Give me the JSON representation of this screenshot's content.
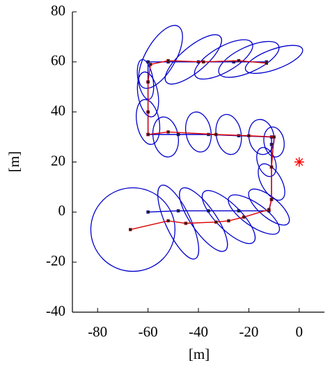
{
  "chart_data": {
    "type": "line",
    "xlabel": "[m]",
    "ylabel": "[m]",
    "xlim": [
      -90,
      10
    ],
    "ylim": [
      -40,
      80
    ],
    "xticks": [
      -80,
      -60,
      -40,
      -20,
      0
    ],
    "yticks": [
      -40,
      -20,
      0,
      20,
      40,
      60,
      80
    ],
    "series": [
      {
        "color": "#0000cc",
        "marker": "square",
        "x": [
          -60,
          -48,
          -36,
          -24,
          -12,
          -11,
          -11,
          -11,
          -11,
          -24,
          -36,
          -48,
          -60,
          -60,
          -60,
          -60,
          -52,
          -40,
          -26,
          -13
        ],
        "y": [
          0,
          0.5,
          0.5,
          0.5,
          0.5,
          5,
          18,
          27,
          30,
          30.5,
          31,
          31,
          31,
          40,
          52,
          60,
          60,
          60,
          60,
          60
        ]
      },
      {
        "color": "#dd0000",
        "marker": "square",
        "x": [
          -67,
          -52,
          -45,
          -33,
          -28,
          -22,
          -12,
          -11,
          -11,
          -10,
          -20,
          -33,
          -52,
          -60,
          -60,
          -60,
          -59,
          -52,
          -38,
          -24,
          -13
        ],
        "y": [
          -7,
          -3.5,
          -4.5,
          -4,
          -3.5,
          -2,
          1,
          5,
          18,
          30,
          30.5,
          31,
          32,
          31,
          40,
          52,
          59,
          60.5,
          60,
          60.5,
          59.5
        ]
      }
    ],
    "ellipse_color": "#0000cc",
    "ellipses": [
      {
        "cx": -66,
        "cy": -7,
        "rx": 16.7,
        "ry": 16.7,
        "angle": 0
      },
      {
        "cx": -48,
        "cy": -4,
        "rx": 16,
        "ry": 5,
        "angle": -65
      },
      {
        "cx": -38,
        "cy": -3,
        "rx": 15,
        "ry": 5,
        "angle": -55
      },
      {
        "cx": -28,
        "cy": -2,
        "rx": 14,
        "ry": 5,
        "angle": -45
      },
      {
        "cx": -18,
        "cy": -1,
        "rx": 12,
        "ry": 4.5,
        "angle": -35
      },
      {
        "cx": -12,
        "cy": 2,
        "rx": 10,
        "ry": 4,
        "angle": -40
      },
      {
        "cx": -11,
        "cy": 12,
        "rx": 8,
        "ry": 4,
        "angle": -60
      },
      {
        "cx": -13,
        "cy": 20,
        "rx": 6,
        "ry": 3.5,
        "angle": -70
      },
      {
        "cx": -10,
        "cy": 28,
        "rx": 6,
        "ry": 4,
        "angle": -80
      },
      {
        "cx": -15,
        "cy": 30,
        "rx": 7,
        "ry": 5,
        "angle": -80
      },
      {
        "cx": -28,
        "cy": 31,
        "rx": 8,
        "ry": 5,
        "angle": -80
      },
      {
        "cx": -40,
        "cy": 32,
        "rx": 8,
        "ry": 5,
        "angle": -80
      },
      {
        "cx": -53,
        "cy": 30,
        "rx": 8,
        "ry": 5,
        "angle": -80
      },
      {
        "cx": -60,
        "cy": 36,
        "rx": 9,
        "ry": 4.5,
        "angle": -80
      },
      {
        "cx": -60,
        "cy": 47,
        "rx": 9,
        "ry": 4,
        "angle": -80
      },
      {
        "cx": -61,
        "cy": 53,
        "rx": 8,
        "ry": 3,
        "angle": -80
      },
      {
        "cx": -55,
        "cy": 62,
        "rx": 14,
        "ry": 6,
        "angle": 60
      },
      {
        "cx": -42,
        "cy": 61,
        "rx": 14,
        "ry": 5,
        "angle": 40
      },
      {
        "cx": -30,
        "cy": 61,
        "rx": 13,
        "ry": 5,
        "angle": 30
      },
      {
        "cx": -20,
        "cy": 61,
        "rx": 13,
        "ry": 5,
        "angle": 25
      },
      {
        "cx": -10,
        "cy": 61,
        "rx": 12,
        "ry": 4,
        "angle": 20
      }
    ],
    "points": [
      {
        "x": 0,
        "y": 20,
        "color": "#ff0000",
        "marker": "star"
      }
    ]
  }
}
